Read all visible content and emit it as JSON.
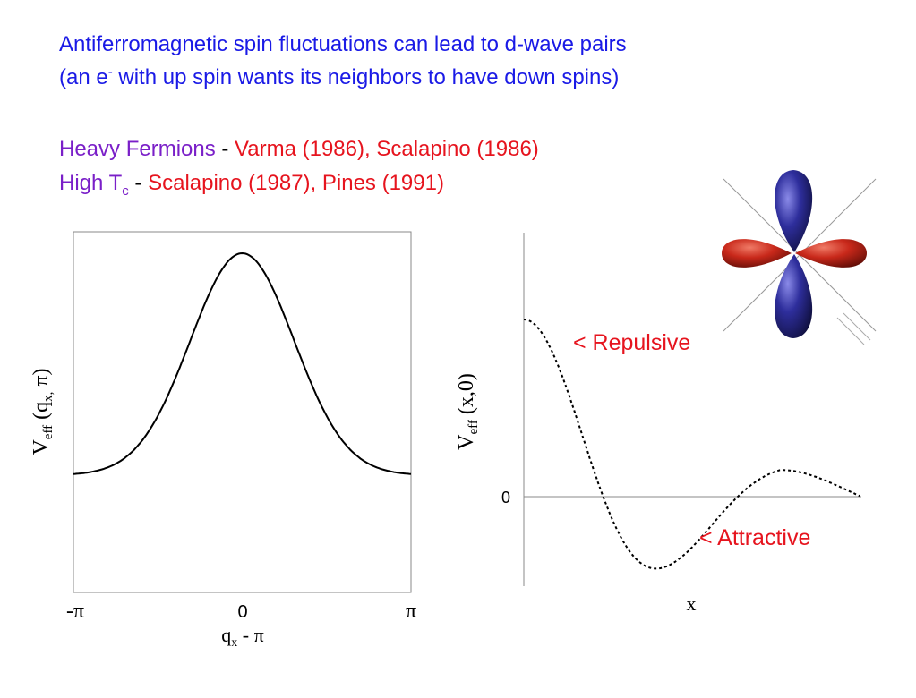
{
  "heading": {
    "line1": "Antiferromagnetic spin fluctuations can lead to d-wave pairs",
    "line2_a": "(an e",
    "line2_sup": "-",
    "line2_b": " with up spin wants its neighbors to have down spins)"
  },
  "refs": {
    "heavy_label": "Heavy Fermions",
    "heavy_sep": " - ",
    "heavy_refs": "Varma (1986), Scalapino (1986)",
    "hightc_label_a": "High T",
    "hightc_label_sub": "c",
    "hightc_sep": " - ",
    "hightc_refs": "Scalapino (1987), Pines (1991)"
  },
  "colors": {
    "heading": "#1a1ae6",
    "label": "#7a1fc8",
    "reference": "#e6141e",
    "lobe_red": "#c8281a",
    "lobe_blue": "#2e2e9c"
  },
  "left_plot": {
    "ylabel_main": "V",
    "ylabel_sub": "eff",
    "ylabel_rest": " (q",
    "ylabel_sub2": "x,",
    "ylabel_end": " π)",
    "tick_left": "-π",
    "tick_mid": "0",
    "tick_right": "π",
    "xlabel_main": "q",
    "xlabel_sub": "x",
    "xlabel_rest": " - π"
  },
  "right_plot": {
    "ylabel_main": "V",
    "ylabel_sub": "eff",
    "ylabel_rest": " (x,0)",
    "zero_label": "0",
    "xlabel": "x",
    "repulsive": "< Repulsive",
    "attractive": "< Attractive"
  },
  "orbital": {
    "icon": "dx2-y2-orbital-icon"
  }
}
